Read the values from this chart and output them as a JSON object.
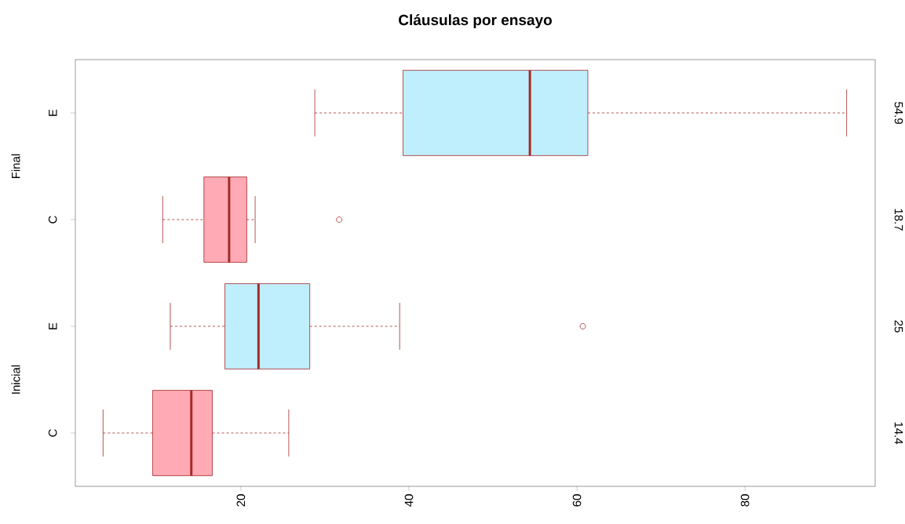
{
  "chart_data": {
    "type": "box",
    "title": "Cláusulas por ensayo",
    "orientation": "horizontal",
    "categories": [
      "E",
      "C",
      "E",
      "C"
    ],
    "colors": [
      "#bfeefd",
      "#ffaab5",
      "#bfeefd",
      "#ffaab5"
    ],
    "boxes": [
      {
        "low": 28.8,
        "q1": 39.3,
        "median": 54.4,
        "q3": 61.3,
        "high": 92.1
      },
      {
        "low": 10.7,
        "q1": 15.6,
        "median": 18.6,
        "q3": 20.7,
        "high": 21.7,
        "outliers": [
          31.7
        ]
      },
      {
        "low": 11.6,
        "q1": 18.1,
        "median": 22.1,
        "q3": 28.2,
        "high": 38.9,
        "outliers": [
          60.7
        ]
      },
      {
        "low": 3.6,
        "q1": 9.5,
        "median": 14.1,
        "q3": 16.6,
        "high": 25.7
      }
    ],
    "xlim": [
      0.3,
      95.5
    ],
    "xticks": [
      20,
      40,
      60,
      80
    ],
    "annotations": [
      "54.9",
      "18.7",
      "25",
      "14.4",
      "Final",
      "Inicial"
    ],
    "grid": false
  }
}
